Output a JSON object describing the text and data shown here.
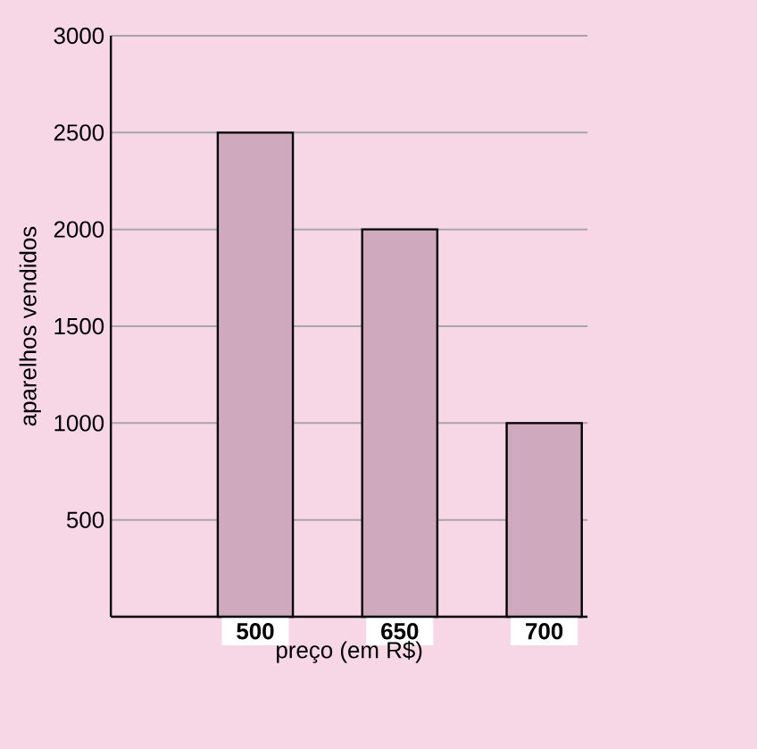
{
  "chart_data": {
    "type": "bar",
    "xlabel": "preço (em R$)",
    "ylabel": "aparelhos vendidos",
    "categories": [
      "500",
      "650",
      "700"
    ],
    "values": [
      2500,
      2000,
      1000
    ],
    "color": "#cfa9bd",
    "ylim": [
      0,
      3000
    ],
    "yticks": [
      500,
      1000,
      1500,
      2000,
      2500,
      3000
    ],
    "grid": "y"
  }
}
